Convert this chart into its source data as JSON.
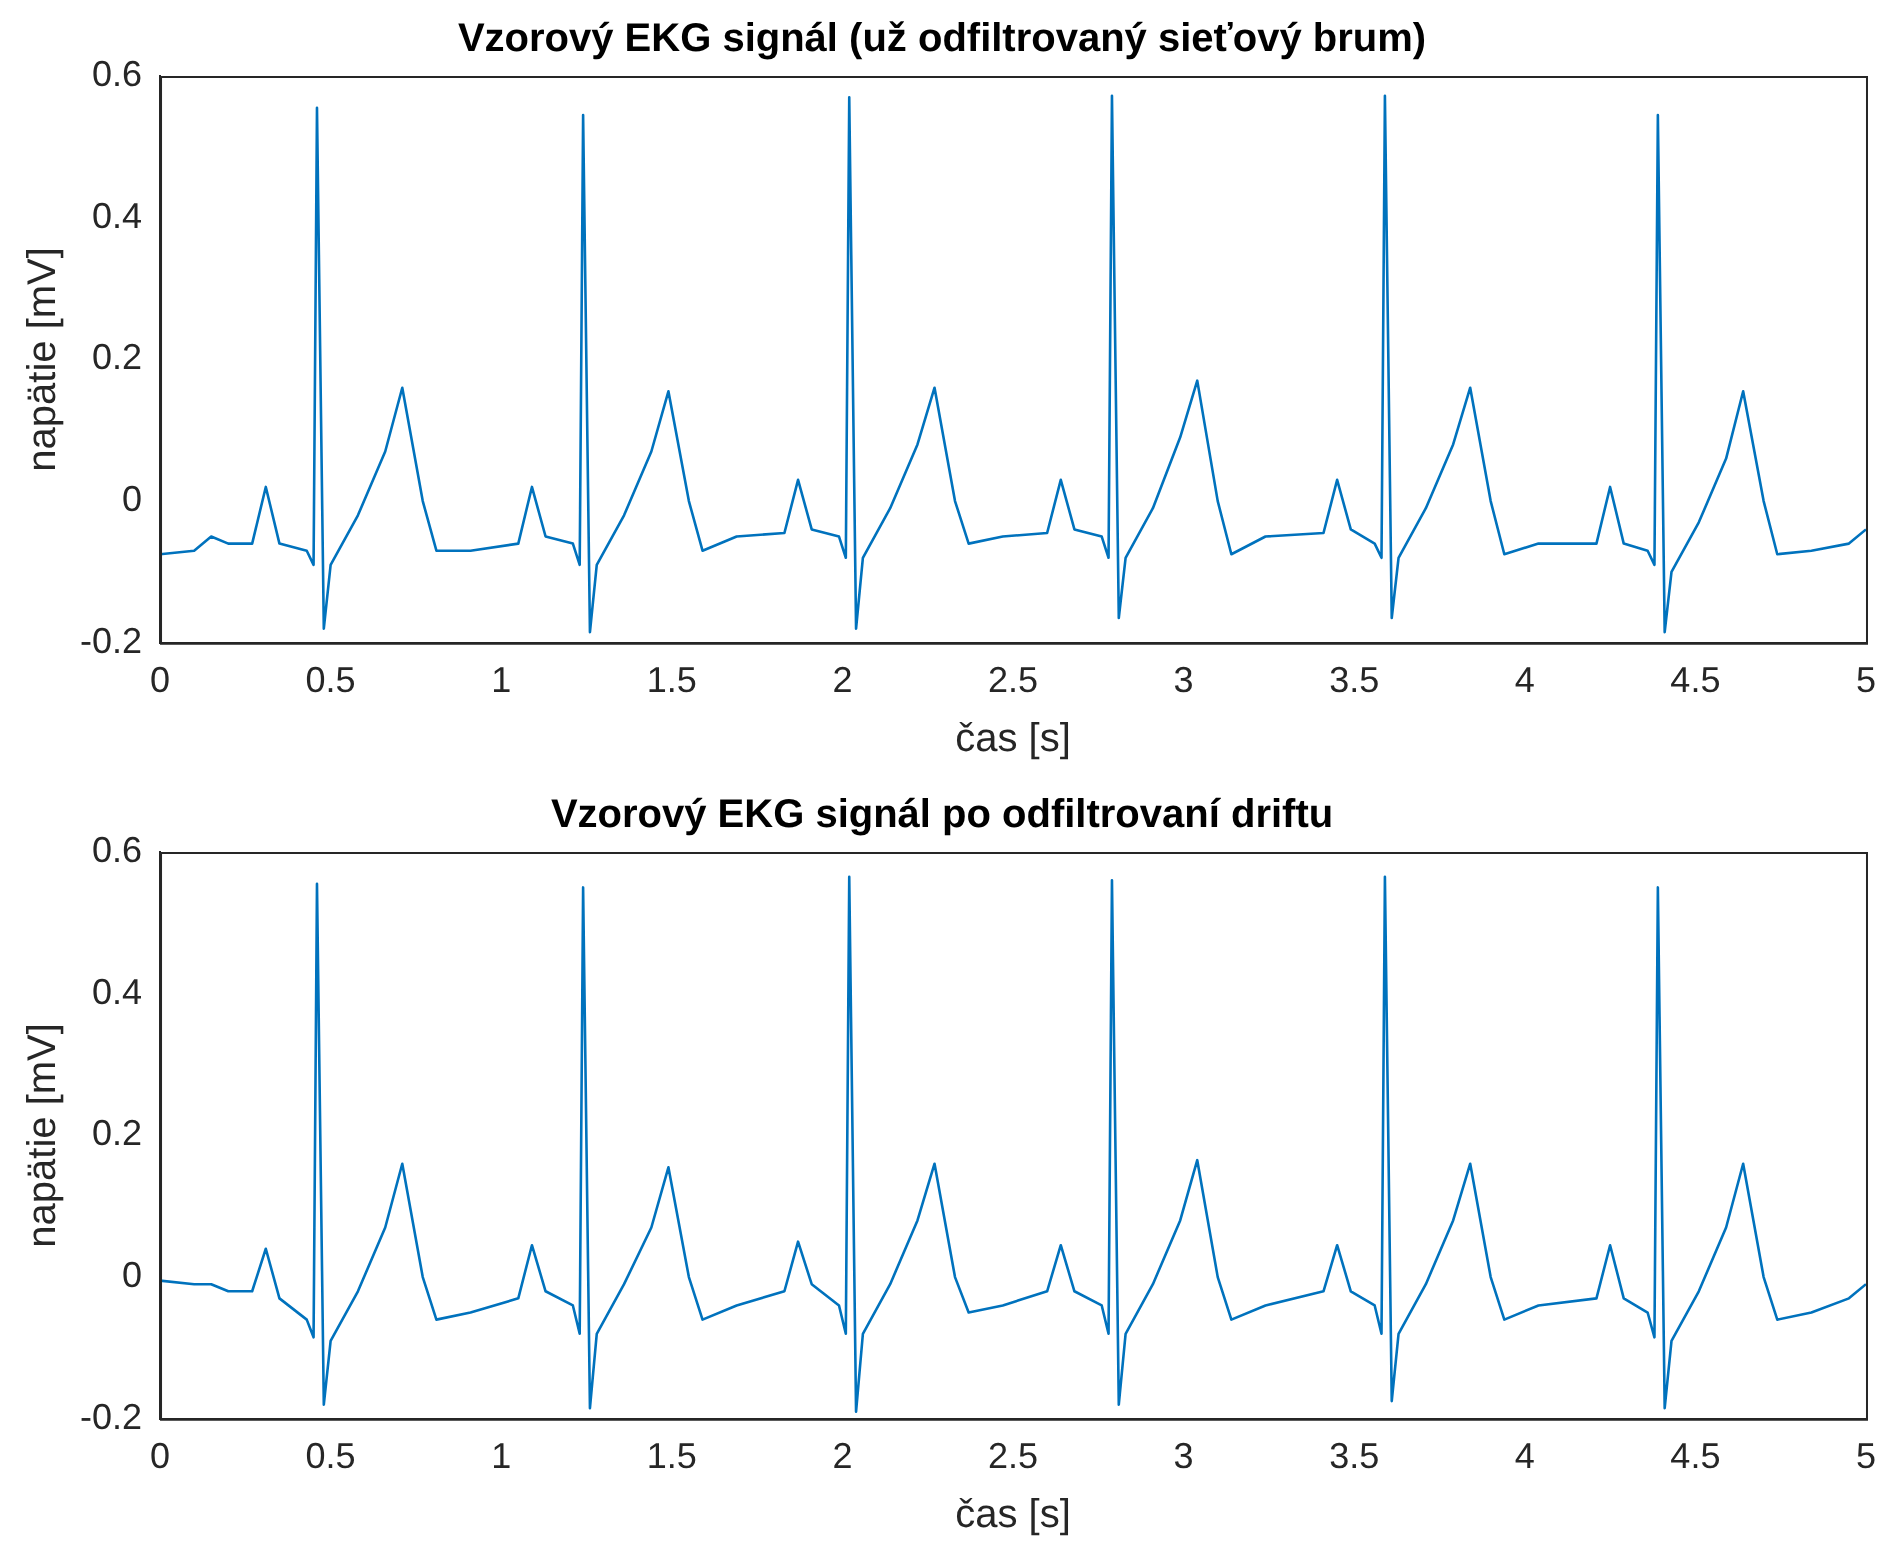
{
  "chart_data": [
    {
      "type": "line",
      "title": "Vzorový EKG signál (už odfiltrovaný sieťový brum)",
      "xlabel": "čas [s]",
      "ylabel": "napätie [mV]",
      "xlim": [
        0,
        5
      ],
      "xticks": [
        0,
        0.5,
        1,
        1.5,
        2,
        2.5,
        3,
        3.5,
        4,
        4.5,
        5
      ],
      "ylim": [
        -0.2,
        0.6
      ],
      "yticks": [
        -0.2,
        0,
        0.2,
        0.4,
        0.6
      ],
      "series": [
        {
          "color": "#0072bd",
          "x": [
            0,
            0.1,
            0.15,
            0.2,
            0.27,
            0.31,
            0.35,
            0.43,
            0.45,
            0.46,
            0.48,
            0.5,
            0.58,
            0.66,
            0.71,
            0.77,
            0.81,
            0.91,
            1.05,
            1.09,
            1.13,
            1.21,
            1.23,
            1.24,
            1.26,
            1.28,
            1.36,
            1.44,
            1.49,
            1.55,
            1.59,
            1.69,
            1.83,
            1.87,
            1.91,
            1.99,
            2.01,
            2.02,
            2.04,
            2.06,
            2.14,
            2.22,
            2.27,
            2.33,
            2.37,
            2.47,
            2.6,
            2.64,
            2.68,
            2.76,
            2.78,
            2.79,
            2.81,
            2.83,
            2.91,
            2.99,
            3.04,
            3.1,
            3.14,
            3.24,
            3.41,
            3.45,
            3.49,
            3.56,
            3.58,
            3.59,
            3.61,
            3.63,
            3.71,
            3.79,
            3.84,
            3.9,
            3.94,
            4.04,
            4.21,
            4.25,
            4.29,
            4.36,
            4.38,
            4.39,
            4.41,
            4.43,
            4.51,
            4.59,
            4.64,
            4.7,
            4.74,
            4.84,
            4.95,
            5
          ],
          "values": [
            -0.075,
            -0.07,
            -0.05,
            -0.06,
            -0.06,
            0.02,
            -0.06,
            -0.07,
            -0.09,
            0.555,
            -0.18,
            -0.09,
            -0.02,
            0.07,
            0.16,
            0.0,
            -0.07,
            -0.07,
            -0.06,
            0.02,
            -0.05,
            -0.06,
            -0.09,
            0.545,
            -0.185,
            -0.09,
            -0.02,
            0.07,
            0.155,
            0.0,
            -0.07,
            -0.05,
            -0.045,
            0.03,
            -0.04,
            -0.05,
            -0.08,
            0.57,
            -0.18,
            -0.08,
            -0.01,
            0.08,
            0.16,
            0.0,
            -0.06,
            -0.05,
            -0.045,
            0.03,
            -0.04,
            -0.05,
            -0.08,
            0.572,
            -0.165,
            -0.08,
            -0.01,
            0.09,
            0.17,
            0.0,
            -0.075,
            -0.05,
            -0.045,
            0.03,
            -0.04,
            -0.06,
            -0.08,
            0.572,
            -0.165,
            -0.08,
            -0.01,
            0.08,
            0.16,
            0.0,
            -0.075,
            -0.06,
            -0.06,
            0.02,
            -0.06,
            -0.07,
            -0.09,
            0.545,
            -0.185,
            -0.1,
            -0.03,
            0.06,
            0.155,
            0.0,
            -0.075,
            -0.07,
            -0.06,
            -0.04
          ]
        }
      ]
    },
    {
      "type": "line",
      "title": "Vzorový EKG signál po odfiltrovaní driftu",
      "xlabel": "čas [s]",
      "ylabel": "napätie [mV]",
      "xlim": [
        0,
        5
      ],
      "xticks": [
        0,
        0.5,
        1,
        1.5,
        2,
        2.5,
        3,
        3.5,
        4,
        4.5,
        5
      ],
      "ylim": [
        -0.2,
        0.6
      ],
      "yticks": [
        -0.2,
        0,
        0.2,
        0.4,
        0.6
      ],
      "series": [
        {
          "color": "#0072bd",
          "x": [
            0,
            0.1,
            0.15,
            0.2,
            0.27,
            0.31,
            0.35,
            0.43,
            0.45,
            0.46,
            0.48,
            0.5,
            0.58,
            0.66,
            0.71,
            0.77,
            0.81,
            0.91,
            1.05,
            1.09,
            1.13,
            1.21,
            1.23,
            1.24,
            1.26,
            1.28,
            1.36,
            1.44,
            1.49,
            1.55,
            1.59,
            1.69,
            1.83,
            1.87,
            1.91,
            1.99,
            2.01,
            2.02,
            2.04,
            2.06,
            2.14,
            2.22,
            2.27,
            2.33,
            2.37,
            2.47,
            2.6,
            2.64,
            2.68,
            2.76,
            2.78,
            2.79,
            2.81,
            2.83,
            2.91,
            2.99,
            3.04,
            3.1,
            3.14,
            3.24,
            3.41,
            3.45,
            3.49,
            3.56,
            3.58,
            3.59,
            3.61,
            3.63,
            3.71,
            3.79,
            3.84,
            3.9,
            3.94,
            4.04,
            4.21,
            4.25,
            4.29,
            4.36,
            4.38,
            4.39,
            4.41,
            4.43,
            4.51,
            4.59,
            4.64,
            4.7,
            4.74,
            4.84,
            4.95,
            5
          ],
          "values": [
            -0.005,
            -0.01,
            -0.01,
            -0.02,
            -0.02,
            0.04,
            -0.03,
            -0.06,
            -0.085,
            0.555,
            -0.18,
            -0.09,
            -0.02,
            0.07,
            0.16,
            0.0,
            -0.06,
            -0.05,
            -0.03,
            0.045,
            -0.02,
            -0.04,
            -0.08,
            0.55,
            -0.185,
            -0.08,
            -0.01,
            0.07,
            0.155,
            0.0,
            -0.06,
            -0.04,
            -0.02,
            0.05,
            -0.01,
            -0.04,
            -0.08,
            0.565,
            -0.19,
            -0.08,
            -0.01,
            0.08,
            0.16,
            0.0,
            -0.05,
            -0.04,
            -0.02,
            0.045,
            -0.02,
            -0.04,
            -0.08,
            0.56,
            -0.18,
            -0.08,
            -0.01,
            0.08,
            0.165,
            0.0,
            -0.06,
            -0.04,
            -0.02,
            0.045,
            -0.02,
            -0.04,
            -0.08,
            0.565,
            -0.175,
            -0.08,
            -0.01,
            0.08,
            0.16,
            0.0,
            -0.06,
            -0.04,
            -0.03,
            0.045,
            -0.03,
            -0.05,
            -0.085,
            0.55,
            -0.185,
            -0.09,
            -0.02,
            0.07,
            0.16,
            0.0,
            -0.06,
            -0.05,
            -0.03,
            -0.01
          ]
        }
      ]
    }
  ]
}
